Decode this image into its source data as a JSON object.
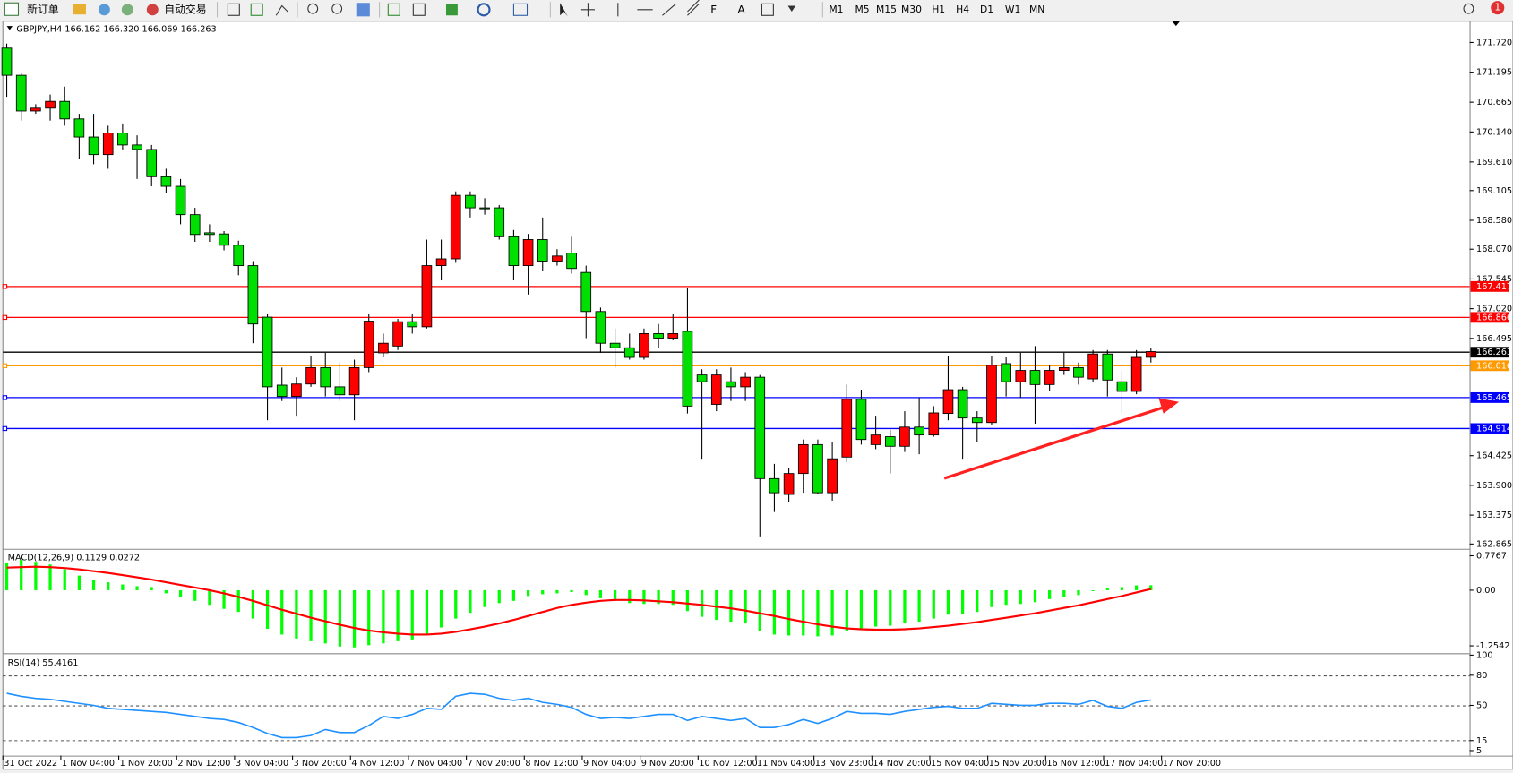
{
  "toolbar": {
    "new_order": "新订单",
    "auto_trading": "自动交易",
    "timeframes": [
      "M1",
      "M5",
      "M15",
      "M30",
      "H1",
      "H4",
      "D1",
      "W1",
      "MN"
    ],
    "notifications": "1"
  },
  "chart_data": [
    {
      "type": "candlestick",
      "title": "GBPJPY,H4  166.162 166.320 166.069 166.263",
      "up_color": "#ff0000",
      "down_color": "#00e000",
      "open": [
        171.62,
        171.14,
        170.51,
        170.56,
        170.68,
        170.37,
        170.05,
        169.74,
        170.12,
        169.91,
        169.83,
        169.35,
        169.18,
        168.68,
        168.36,
        168.34,
        168.14,
        167.78,
        166.87,
        165.67,
        165.47,
        165.69,
        165.98,
        165.64,
        165.5,
        165.98,
        166.24,
        166.36,
        166.79,
        166.7,
        167.78,
        167.9,
        169.02,
        168.8,
        168.8,
        168.29,
        167.78,
        168.24,
        167.86,
        168.0,
        167.66,
        166.97,
        166.41,
        166.33,
        166.16,
        166.58,
        166.5,
        166.62,
        165.85,
        165.33,
        165.73,
        165.64,
        165.81,
        164.02,
        163.74,
        164.11,
        164.62,
        163.77,
        164.4,
        165.42,
        164.62,
        164.76,
        164.59,
        164.93,
        164.79,
        165.17,
        165.59,
        165.09,
        165.01,
        166.05,
        165.73,
        165.93,
        165.68,
        165.93,
        165.98,
        165.78,
        166.22,
        165.73,
        165.56,
        166.162
      ],
      "high": [
        171.7,
        171.19,
        170.63,
        170.8,
        170.94,
        170.46,
        170.46,
        170.25,
        170.29,
        170.08,
        169.91,
        169.49,
        169.31,
        168.8,
        168.51,
        168.39,
        168.22,
        167.86,
        166.92,
        165.98,
        165.81,
        166.19,
        166.24,
        166.07,
        166.12,
        166.92,
        166.58,
        166.84,
        166.92,
        168.24,
        168.24,
        169.09,
        169.09,
        168.97,
        168.85,
        168.41,
        168.34,
        168.63,
        168.07,
        168.29,
        167.78,
        167.04,
        166.67,
        166.58,
        166.67,
        166.75,
        166.92,
        167.38,
        165.95,
        165.95,
        165.98,
        165.9,
        165.85,
        164.28,
        164.2,
        164.71,
        164.71,
        164.66,
        165.68,
        165.59,
        165.13,
        164.88,
        165.21,
        165.45,
        165.3,
        166.19,
        165.64,
        165.21,
        166.19,
        166.16,
        166.24,
        166.36,
        166.02,
        166.24,
        166.07,
        166.29,
        166.29,
        165.93,
        166.29,
        166.32
      ],
      "low": [
        170.76,
        170.34,
        170.46,
        170.34,
        170.25,
        169.66,
        169.57,
        169.49,
        169.83,
        169.31,
        169.18,
        169.06,
        168.51,
        168.2,
        168.2,
        168.05,
        167.61,
        166.41,
        165.05,
        165.39,
        165.13,
        165.64,
        165.47,
        165.39,
        165.05,
        165.9,
        166.16,
        166.29,
        166.58,
        166.67,
        167.52,
        167.83,
        168.63,
        168.68,
        168.24,
        167.52,
        167.27,
        167.69,
        167.78,
        167.64,
        166.5,
        166.24,
        165.98,
        166.12,
        166.12,
        166.33,
        166.46,
        165.17,
        164.37,
        165.21,
        165.39,
        165.39,
        163.0,
        163.43,
        163.6,
        163.77,
        163.74,
        163.63,
        164.31,
        164.62,
        164.54,
        164.11,
        164.49,
        164.45,
        164.76,
        165.05,
        164.37,
        164.66,
        164.96,
        165.47,
        165.44,
        164.99,
        165.56,
        165.85,
        165.68,
        165.73,
        165.47,
        165.17,
        165.51,
        166.069
      ],
      "close": [
        171.14,
        170.51,
        170.56,
        170.68,
        170.37,
        170.05,
        169.74,
        170.12,
        169.91,
        169.83,
        169.35,
        169.18,
        168.68,
        168.33,
        168.33,
        168.14,
        167.78,
        166.75,
        165.64,
        165.47,
        165.69,
        165.98,
        165.64,
        165.5,
        165.98,
        166.8,
        166.41,
        166.79,
        166.7,
        167.78,
        167.9,
        169.02,
        168.8,
        168.79,
        168.29,
        167.78,
        168.24,
        167.86,
        167.95,
        167.73,
        166.97,
        166.41,
        166.33,
        166.16,
        166.58,
        166.5,
        166.58,
        165.3,
        165.73,
        165.85,
        165.64,
        165.81,
        164.02,
        163.77,
        164.11,
        164.62,
        163.77,
        164.37,
        165.42,
        164.71,
        164.79,
        164.59,
        164.93,
        164.79,
        165.18,
        165.59,
        165.09,
        165.01,
        166.02,
        165.73,
        165.93,
        165.68,
        165.93,
        165.98,
        165.81,
        166.22,
        165.76,
        165.56,
        166.16,
        166.263
      ],
      "time_labels": [
        "31 Oct 2022",
        "1 Nov 04:00",
        "1 Nov 20:00",
        "2 Nov 12:00",
        "3 Nov 04:00",
        "3 Nov 20:00",
        "4 Nov 12:00",
        "7 Nov 04:00",
        "7 Nov 20:00",
        "8 Nov 12:00",
        "9 Nov 04:00",
        "9 Nov 20:00",
        "10 Nov 12:00",
        "11 Nov 04:00",
        "13 Nov 23:00",
        "14 Nov 20:00",
        "15 Nov 04:00",
        "15 Nov 20:00",
        "16 Nov 12:00",
        "17 Nov 04:00",
        "17 Nov 20:00"
      ],
      "ylim": [
        162.78,
        172.095
      ],
      "yticks": [
        {
          "value": 171.72,
          "label": "171.720"
        },
        171.195,
        170.665,
        {
          "value": 170.14,
          "label": "170.140"
        },
        {
          "value": 169.61,
          "label": "169.610"
        },
        169.105,
        {
          "value": 168.58,
          "label": "168.580"
        },
        {
          "value": 168.07,
          "label": "168.070"
        },
        167.545,
        {
          "value": 167.02,
          "label": "167.020"
        },
        166.495,
        164.425,
        {
          "value": 163.9,
          "label": "163.900"
        },
        163.375,
        162.865
      ],
      "levels": [
        {
          "value": 167.417,
          "color": "#ff0000"
        },
        {
          "value": 166.866,
          "color": "#ff0000"
        },
        {
          "value": 166.263,
          "color": "#000000"
        },
        {
          "value": 166.016,
          "color": "#ff9900"
        },
        {
          "value": 165.465,
          "color": "#0000ff"
        },
        {
          "value": 164.914,
          "color": "#0000ff"
        }
      ]
    },
    {
      "type": "macd",
      "title": "MACD(12,26,9) 0.1129 0.0272",
      "histogram": {
        "color": "#00ff00",
        "values": [
          0.62,
          0.69,
          0.64,
          0.58,
          0.47,
          0.33,
          0.24,
          0.18,
          0.13,
          0.09,
          0.07,
          -0.07,
          -0.16,
          -0.24,
          -0.33,
          -0.42,
          -0.49,
          -0.64,
          -0.87,
          -1.0,
          -1.09,
          -1.15,
          -1.2,
          -1.27,
          -1.29,
          -1.24,
          -1.2,
          -1.15,
          -1.11,
          -0.98,
          -0.84,
          -0.64,
          -0.51,
          -0.38,
          -0.29,
          -0.24,
          -0.13,
          -0.09,
          -0.07,
          -0.04,
          -0.11,
          -0.18,
          -0.24,
          -0.29,
          -0.31,
          -0.31,
          -0.33,
          -0.47,
          -0.6,
          -0.67,
          -0.71,
          -0.75,
          -0.91,
          -1.0,
          -1.02,
          -1.02,
          -1.04,
          -1.02,
          -0.91,
          -0.87,
          -0.82,
          -0.8,
          -0.75,
          -0.71,
          -0.64,
          -0.55,
          -0.53,
          -0.49,
          -0.38,
          -0.33,
          -0.31,
          -0.27,
          -0.2,
          -0.16,
          -0.11,
          -0.02,
          0.04,
          0.07,
          0.11,
          0.1129
        ]
      },
      "signal": {
        "color": "#ff0000",
        "values": [
          0.51,
          0.52,
          0.53,
          0.52,
          0.5,
          0.47,
          0.43,
          0.39,
          0.34,
          0.29,
          0.24,
          0.18,
          0.12,
          0.06,
          0.0,
          -0.07,
          -0.15,
          -0.24,
          -0.34,
          -0.44,
          -0.53,
          -0.62,
          -0.7,
          -0.78,
          -0.85,
          -0.91,
          -0.95,
          -0.98,
          -1.0,
          -1.0,
          -0.98,
          -0.94,
          -0.88,
          -0.82,
          -0.75,
          -0.67,
          -0.58,
          -0.49,
          -0.4,
          -0.33,
          -0.28,
          -0.24,
          -0.22,
          -0.22,
          -0.23,
          -0.25,
          -0.27,
          -0.3,
          -0.33,
          -0.37,
          -0.41,
          -0.46,
          -0.52,
          -0.58,
          -0.65,
          -0.71,
          -0.77,
          -0.82,
          -0.86,
          -0.88,
          -0.89,
          -0.89,
          -0.88,
          -0.86,
          -0.83,
          -0.8,
          -0.76,
          -0.72,
          -0.67,
          -0.62,
          -0.57,
          -0.52,
          -0.46,
          -0.4,
          -0.34,
          -0.27,
          -0.2,
          -0.13,
          -0.05,
          0.0272
        ]
      },
      "ylim": [
        -1.42,
        0.89
      ],
      "yticks": [
        0.7767,
        {
          "value": 0,
          "label": "0.00"
        },
        -1.2542
      ]
    },
    {
      "type": "line",
      "title": "RSI(14) 55.4161",
      "color": "#1e90ff",
      "values": [
        62,
        59,
        57,
        56,
        54,
        52,
        50,
        47,
        46,
        45,
        44,
        43,
        41,
        39,
        37,
        36,
        33,
        28,
        22,
        18,
        18,
        20,
        26,
        23,
        23,
        30,
        39,
        37,
        41,
        47,
        46,
        59,
        62,
        61,
        57,
        55,
        57,
        53,
        51,
        48,
        41,
        37,
        38,
        37,
        39,
        41,
        41,
        35,
        39,
        37,
        35,
        37,
        28,
        28,
        31,
        36,
        32,
        37,
        44,
        42,
        42,
        41,
        44,
        46,
        48,
        49,
        47,
        47,
        52,
        51,
        50,
        50,
        52,
        52,
        51,
        55,
        49,
        47,
        53,
        55.4161
      ],
      "ylim": [
        0,
        100
      ],
      "yticks": [
        100,
        80,
        50,
        15,
        5
      ],
      "levels": [
        80,
        50,
        15
      ]
    }
  ]
}
